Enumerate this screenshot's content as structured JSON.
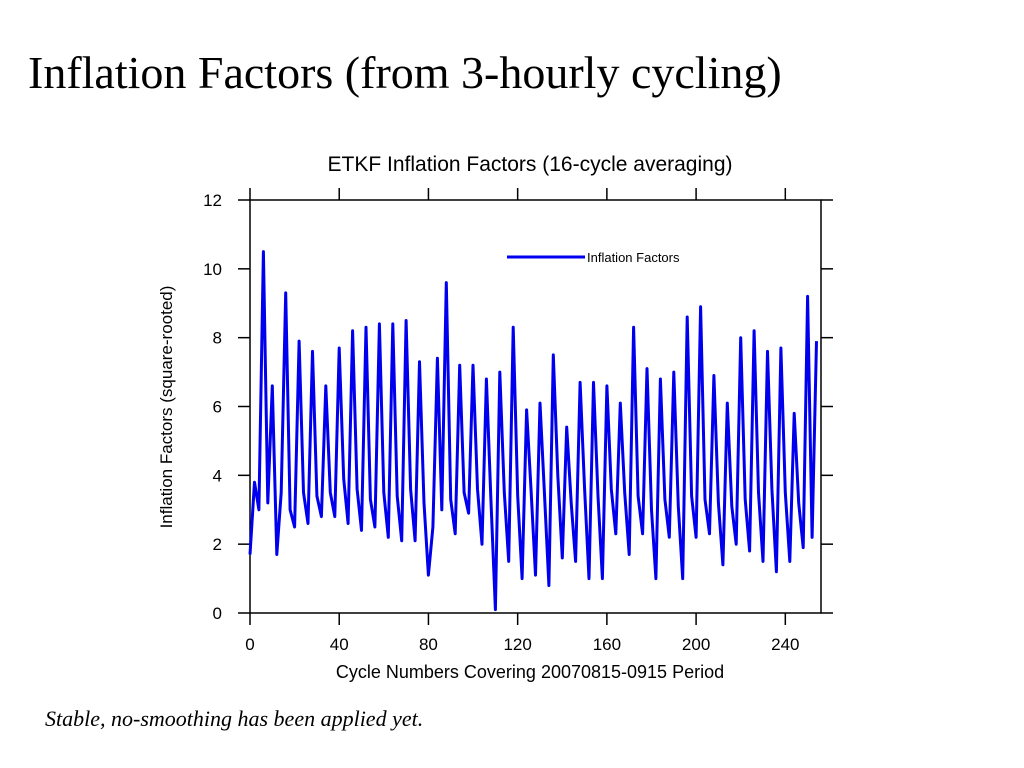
{
  "slide_title": "Inflation Factors (from 3-hourly cycling)",
  "caption": "Stable, no-smoothing has been applied yet.",
  "chart_data": {
    "type": "line",
    "title": "ETKF Inflation Factors (16-cycle averaging)",
    "xlabel": "Cycle Numbers Covering 20070815-0915 Period",
    "ylabel": "Inflation Factors (square-rooted)",
    "xlim": [
      0,
      256
    ],
    "ylim": [
      0,
      12
    ],
    "xticks": [
      0,
      40,
      80,
      120,
      160,
      200,
      240
    ],
    "yticks": [
      0,
      2,
      4,
      6,
      8,
      10,
      12
    ],
    "legend": "upper right",
    "x": [
      0,
      2,
      4,
      6,
      8,
      10,
      12,
      14,
      16,
      18,
      20,
      22,
      24,
      26,
      28,
      30,
      32,
      34,
      36,
      38,
      40,
      42,
      44,
      46,
      48,
      50,
      52,
      54,
      56,
      58,
      60,
      62,
      64,
      66,
      68,
      70,
      72,
      74,
      76,
      78,
      80,
      82,
      84,
      86,
      88,
      90,
      92,
      94,
      96,
      98,
      100,
      102,
      104,
      106,
      108,
      110,
      112,
      114,
      116,
      118,
      120,
      122,
      124,
      126,
      128,
      130,
      132,
      134,
      136,
      138,
      140,
      142,
      144,
      146,
      148,
      150,
      152,
      154,
      156,
      158,
      160,
      162,
      164,
      166,
      168,
      170,
      172,
      174,
      176,
      178,
      180,
      182,
      184,
      186,
      188,
      190,
      192,
      194,
      196,
      198,
      200,
      202,
      204,
      206,
      208,
      210,
      212,
      214,
      216,
      218,
      220,
      222,
      224,
      226,
      228,
      230,
      232,
      234,
      236,
      238,
      240,
      242,
      244,
      246,
      248,
      250,
      252,
      254
    ],
    "series": [
      {
        "name": "Inflation Factors",
        "color": "#0000ee",
        "values": [
          1.7,
          3.8,
          3.0,
          10.5,
          3.2,
          6.6,
          1.7,
          3.5,
          9.3,
          3.0,
          2.5,
          7.9,
          3.5,
          2.6,
          7.6,
          3.4,
          2.8,
          6.6,
          3.5,
          2.8,
          7.7,
          3.9,
          2.6,
          8.2,
          3.6,
          2.4,
          8.3,
          3.3,
          2.5,
          8.4,
          3.5,
          2.2,
          8.4,
          3.4,
          2.1,
          8.5,
          3.6,
          2.1,
          7.3,
          3.2,
          1.1,
          2.5,
          7.4,
          3.0,
          9.6,
          3.3,
          2.3,
          7.2,
          3.5,
          2.9,
          7.2,
          3.6,
          2.0,
          6.8,
          3.3,
          0.1,
          7.0,
          3.5,
          1.5,
          8.3,
          3.4,
          1.0,
          5.9,
          3.6,
          1.1,
          6.1,
          3.5,
          0.8,
          7.5,
          4.0,
          1.6,
          5.4,
          3.2,
          1.5,
          6.7,
          3.6,
          1.0,
          6.7,
          3.4,
          1.0,
          6.6,
          3.6,
          2.3,
          6.1,
          3.5,
          1.7,
          8.3,
          3.4,
          2.3,
          7.1,
          3.0,
          1.0,
          6.8,
          3.3,
          2.2,
          7.0,
          3.1,
          1.0,
          8.6,
          3.4,
          2.2,
          8.9,
          3.3,
          2.3,
          6.9,
          3.2,
          1.4,
          6.1,
          3.1,
          2.0,
          8.0,
          3.3,
          1.8,
          8.2,
          3.5,
          1.5,
          7.6,
          3.6,
          1.2,
          7.7,
          3.5,
          1.5,
          5.8,
          3.2,
          1.9,
          9.2,
          2.2,
          7.9
        ]
      }
    ]
  }
}
